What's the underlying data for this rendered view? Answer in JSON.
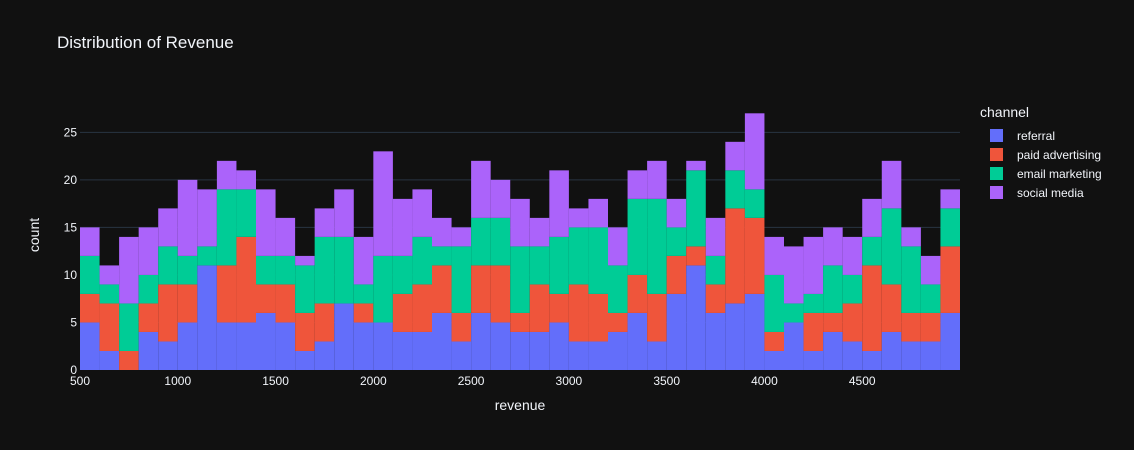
{
  "chart_data": {
    "type": "bar",
    "subtype": "stacked-histogram",
    "title": "Distribution of Revenue",
    "xlabel": "revenue",
    "ylabel": "count",
    "xlim": [
      500,
      5000
    ],
    "ylim": [
      0,
      28.4
    ],
    "bin_start": 500,
    "bin_width": 100,
    "x_ticks": [
      500,
      1000,
      1500,
      2000,
      2500,
      3000,
      3500,
      4000,
      4500
    ],
    "x_tick_labels": [
      "500",
      "1000",
      "1500",
      "2000",
      "2500",
      "3000",
      "3500",
      "4000",
      "4500"
    ],
    "y_ticks": [
      0,
      5,
      10,
      15,
      20,
      25
    ],
    "y_tick_labels": [
      "0",
      "5",
      "10",
      "15",
      "20",
      "25"
    ],
    "grid": true,
    "legend_title": "channel",
    "legend_position": "right",
    "series": [
      {
        "name": "referral",
        "color": "#636efa",
        "values": [
          5,
          2,
          0,
          4,
          3,
          5,
          11,
          5,
          5,
          6,
          5,
          2,
          3,
          7,
          5,
          5,
          4,
          4,
          6,
          3,
          6,
          5,
          4,
          4,
          5,
          3,
          3,
          4,
          6,
          3,
          8,
          11,
          6,
          7,
          8,
          2,
          5,
          2,
          4,
          3,
          2,
          4,
          3,
          3,
          6
        ]
      },
      {
        "name": "paid advertising",
        "color": "#ef553b",
        "values": [
          3,
          5,
          2,
          3,
          6,
          4,
          0,
          6,
          9,
          3,
          4,
          4,
          4,
          0,
          2,
          0,
          4,
          5,
          5,
          3,
          5,
          6,
          2,
          5,
          3,
          6,
          5,
          2,
          4,
          5,
          4,
          2,
          3,
          10,
          8,
          2,
          0,
          4,
          2,
          4,
          9,
          5,
          3,
          3,
          7
        ]
      },
      {
        "name": "email marketing",
        "color": "#00cc96",
        "values": [
          4,
          2,
          5,
          3,
          4,
          3,
          2,
          8,
          5,
          3,
          3,
          5,
          7,
          7,
          2,
          7,
          4,
          5,
          2,
          7,
          5,
          5,
          7,
          4,
          6,
          6,
          7,
          5,
          8,
          10,
          3,
          8,
          3,
          4,
          3,
          6,
          2,
          2,
          5,
          3,
          3,
          8,
          7,
          3,
          4
        ]
      },
      {
        "name": "social media",
        "color": "#ab63fa",
        "values": [
          3,
          2,
          7,
          5,
          4,
          8,
          6,
          3,
          2,
          7,
          4,
          1,
          3,
          5,
          5,
          11,
          6,
          5,
          3,
          2,
          6,
          4,
          5,
          3,
          7,
          2,
          3,
          4,
          3,
          4,
          3,
          1,
          4,
          3,
          8,
          4,
          6,
          6,
          4,
          4,
          4,
          5,
          2,
          3,
          2
        ]
      }
    ]
  }
}
